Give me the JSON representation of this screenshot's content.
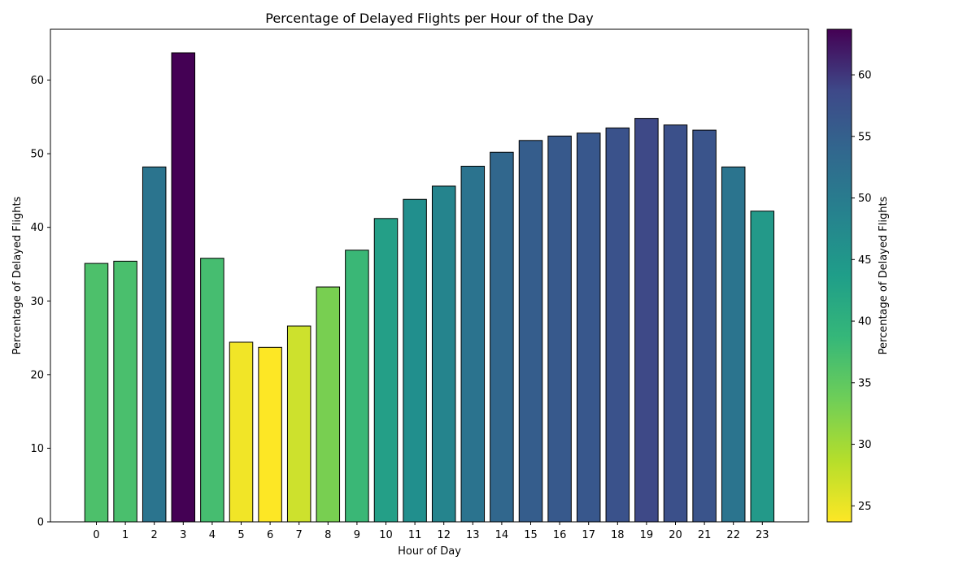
{
  "chart_data": {
    "type": "bar",
    "title": "Percentage of Delayed Flights per Hour of the Day",
    "xlabel": "Hour of Day",
    "ylabel": "Percentage of Delayed Flights",
    "categories": [
      "0",
      "1",
      "2",
      "3",
      "4",
      "5",
      "6",
      "7",
      "8",
      "9",
      "10",
      "11",
      "12",
      "13",
      "14",
      "15",
      "16",
      "17",
      "18",
      "19",
      "20",
      "21",
      "22",
      "23"
    ],
    "values": [
      35.1,
      35.4,
      48.2,
      63.7,
      35.8,
      24.4,
      23.7,
      26.6,
      31.9,
      36.9,
      41.2,
      43.8,
      45.6,
      48.3,
      50.2,
      51.8,
      52.4,
      52.8,
      53.5,
      54.8,
      53.9,
      53.2,
      48.2,
      42.2
    ],
    "ylim": [
      0,
      66.9
    ],
    "y_ticks": [
      0,
      10,
      20,
      30,
      40,
      50,
      60
    ],
    "grid": false,
    "colormap": "viridis_r",
    "colorbar": {
      "label": "Percentage of Delayed Flights",
      "range": [
        23.7,
        63.7
      ],
      "ticks": [
        25,
        30,
        35,
        40,
        45,
        50,
        55,
        60
      ]
    },
    "bar_edge_color": "#000000"
  }
}
